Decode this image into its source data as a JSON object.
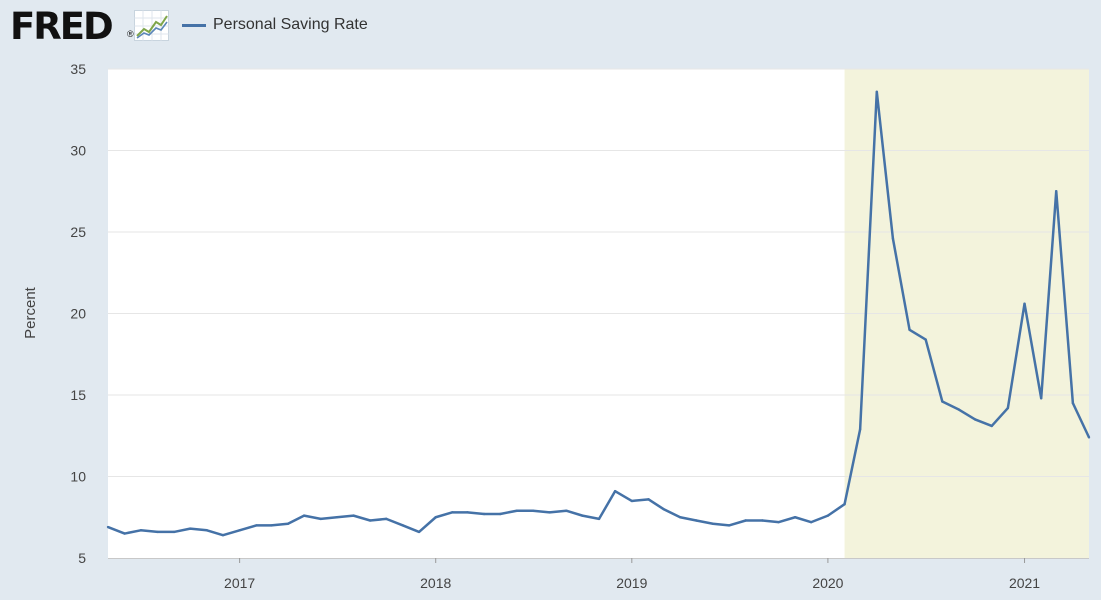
{
  "header": {
    "logo_text": "FRED",
    "logo_mark": "®",
    "logo_icon": "line-graph-icon"
  },
  "colors": {
    "background": "#e1e9f0",
    "plot_background": "#ffffff",
    "series": "#4572a7",
    "recession": "#f3f3dc",
    "grid": "#e6e6e6"
  },
  "chart_data": {
    "type": "line",
    "ylabel": "Percent",
    "xlabel": "",
    "title": "",
    "ylim": [
      5,
      35
    ],
    "yticks": [
      5,
      10,
      15,
      20,
      25,
      30,
      35
    ],
    "xlim": [
      "2016-05-01",
      "2021-05-01"
    ],
    "xticks": [
      {
        "date": "2017-01-01",
        "label": "2017"
      },
      {
        "date": "2018-01-01",
        "label": "2018"
      },
      {
        "date": "2019-01-01",
        "label": "2019"
      },
      {
        "date": "2020-01-01",
        "label": "2020"
      },
      {
        "date": "2021-01-01",
        "label": "2021"
      }
    ],
    "shaded_regions": [
      {
        "start": "2020-02-01",
        "end": "2021-05-01",
        "label": "recession"
      }
    ],
    "legend_position": "top-left",
    "grid": "horizontal",
    "series": [
      {
        "name": "Personal Saving Rate",
        "x": [
          "2016-05-01",
          "2016-06-01",
          "2016-07-01",
          "2016-08-01",
          "2016-09-01",
          "2016-10-01",
          "2016-11-01",
          "2016-12-01",
          "2017-01-01",
          "2017-02-01",
          "2017-03-01",
          "2017-04-01",
          "2017-05-01",
          "2017-06-01",
          "2017-07-01",
          "2017-08-01",
          "2017-09-01",
          "2017-10-01",
          "2017-11-01",
          "2017-12-01",
          "2018-01-01",
          "2018-02-01",
          "2018-03-01",
          "2018-04-01",
          "2018-05-01",
          "2018-06-01",
          "2018-07-01",
          "2018-08-01",
          "2018-09-01",
          "2018-10-01",
          "2018-11-01",
          "2018-12-01",
          "2019-01-01",
          "2019-02-01",
          "2019-03-01",
          "2019-04-01",
          "2019-05-01",
          "2019-06-01",
          "2019-07-01",
          "2019-08-01",
          "2019-09-01",
          "2019-10-01",
          "2019-11-01",
          "2019-12-01",
          "2020-01-01",
          "2020-02-01",
          "2020-03-01",
          "2020-04-01",
          "2020-05-01",
          "2020-06-01",
          "2020-07-01",
          "2020-08-01",
          "2020-09-01",
          "2020-10-01",
          "2020-11-01",
          "2020-12-01",
          "2021-01-01",
          "2021-02-01",
          "2021-03-01",
          "2021-04-01",
          "2021-05-01"
        ],
        "values": [
          6.9,
          6.5,
          6.7,
          6.6,
          6.6,
          6.8,
          6.7,
          6.4,
          6.7,
          7.0,
          7.0,
          7.1,
          7.6,
          7.4,
          7.5,
          7.6,
          7.3,
          7.4,
          7.0,
          6.6,
          7.5,
          7.8,
          7.8,
          7.7,
          7.7,
          7.9,
          7.9,
          7.8,
          7.9,
          7.6,
          7.4,
          9.1,
          8.5,
          8.6,
          8.0,
          7.5,
          7.3,
          7.1,
          7.0,
          7.3,
          7.3,
          7.2,
          7.5,
          7.2,
          7.6,
          8.3,
          12.9,
          33.6,
          24.6,
          19.0,
          18.4,
          14.6,
          14.1,
          13.5,
          13.1,
          14.2,
          20.6,
          14.8,
          27.5,
          14.5,
          12.4
        ]
      }
    ]
  }
}
